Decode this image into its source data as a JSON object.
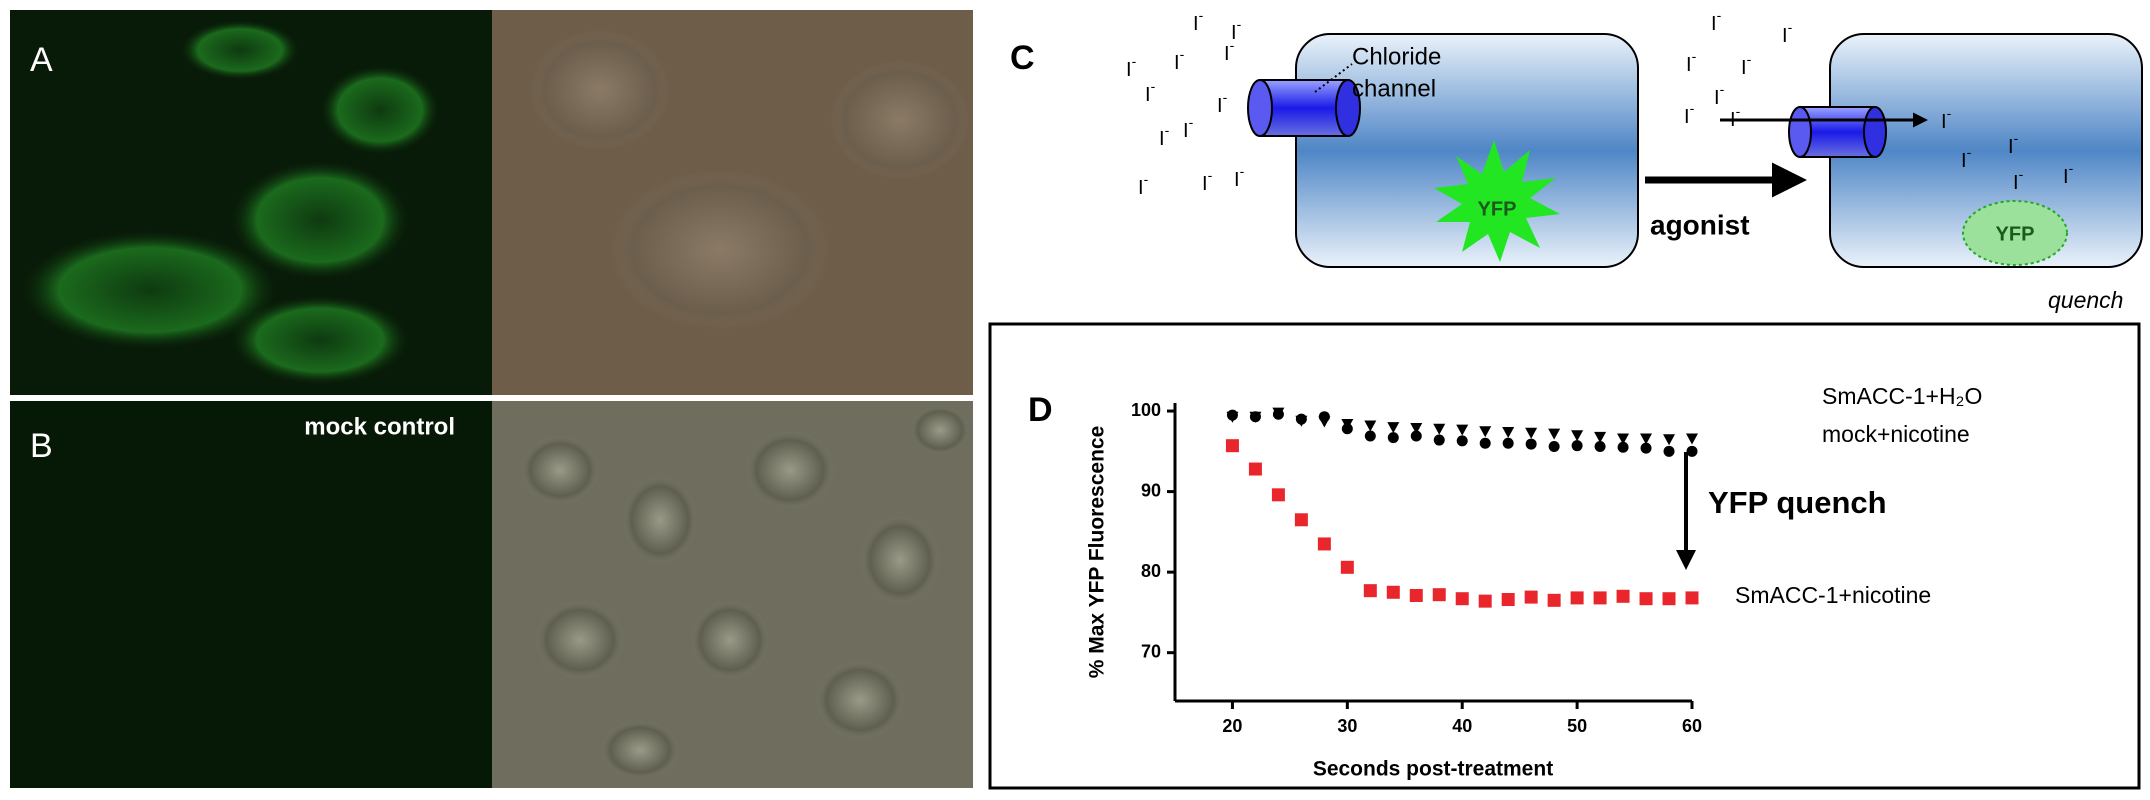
{
  "panels": {
    "A": {
      "label": "A"
    },
    "B": {
      "label": "B",
      "caption": "mock control"
    },
    "C": {
      "label": "C",
      "channel_label": [
        "Chloride",
        "channel"
      ],
      "ion": "I",
      "ion_charge": "-",
      "yfp": "YFP",
      "agonist": "agonist",
      "quench": "quench"
    },
    "D": {
      "label": "D"
    }
  },
  "chart_data": {
    "type": "scatter",
    "x_label": "Seconds post-treatment",
    "y_label": "% Max YFP Fluorescence",
    "annotation": "YFP quench",
    "xlim": [
      15,
      60
    ],
    "xticks": [
      20,
      30,
      40,
      50,
      60
    ],
    "ylim": [
      64,
      101
    ],
    "yticks": [
      70,
      80,
      90,
      100
    ],
    "x": [
      20,
      22,
      24,
      26,
      28,
      30,
      32,
      34,
      36,
      38,
      40,
      42,
      44,
      46,
      48,
      50,
      52,
      54,
      56,
      58,
      60
    ],
    "series": [
      {
        "name": "SmACC-1+H₂O",
        "color": "#000000",
        "marker": "triangle-down",
        "values": [
          99.3,
          99.3,
          99.8,
          98.8,
          98.7,
          98.4,
          98.2,
          98.0,
          97.9,
          97.8,
          97.7,
          97.5,
          97.4,
          97.3,
          97.2,
          97.0,
          96.8,
          96.6,
          96.6,
          96.5,
          96.6
        ]
      },
      {
        "name": "mock+nicotine",
        "color": "#000000",
        "marker": "circle",
        "values": [
          99.5,
          99.3,
          99.6,
          99.0,
          99.3,
          97.8,
          96.9,
          96.7,
          96.9,
          96.4,
          96.3,
          96.0,
          96.0,
          95.9,
          95.6,
          95.7,
          95.6,
          95.5,
          95.4,
          95.0,
          95.0
        ]
      },
      {
        "name": "SmACC-1+nicotine",
        "color": "#e8262c",
        "marker": "square",
        "values": [
          95.7,
          92.8,
          89.6,
          86.5,
          83.5,
          80.6,
          77.7,
          77.5,
          77.1,
          77.2,
          76.7,
          76.4,
          76.6,
          76.9,
          76.5,
          76.8,
          76.8,
          77.0,
          76.7,
          76.7,
          76.8
        ]
      }
    ]
  }
}
